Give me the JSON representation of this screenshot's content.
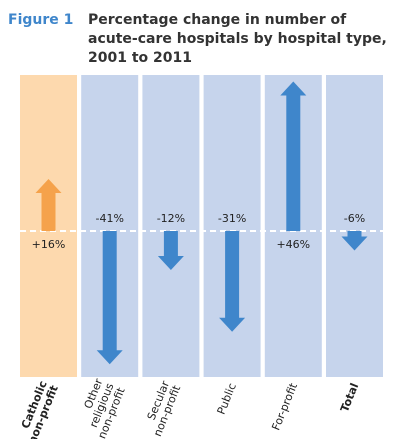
{
  "chart_data": {
    "type": "arrow",
    "figure_label": "Figure 1",
    "title": [
      "Percentage change in number of",
      "acute-care hospitals by hospital type,",
      "2001 to 2011"
    ],
    "categories": [
      "Catholic non-profit",
      "Other religious non-profit",
      "Secular non-profit",
      "Public",
      "For-profit",
      "Total"
    ],
    "values": [
      16,
      -41,
      -12,
      -31,
      46,
      -6
    ],
    "value_labels": [
      "+16%",
      "-41%",
      "-12%",
      "-31%",
      "+46%",
      "-6%"
    ],
    "colors": [
      "#f5a24b",
      "#3f86cb",
      "#3f86cb",
      "#3f86cb",
      "#3f86cb",
      "#3f86cb"
    ],
    "band_colors": [
      "#fdd9ae",
      "#c6d4ec",
      "#c6d4ec",
      "#c6d4ec",
      "#c6d4ec",
      "#c6d4ec"
    ]
  }
}
